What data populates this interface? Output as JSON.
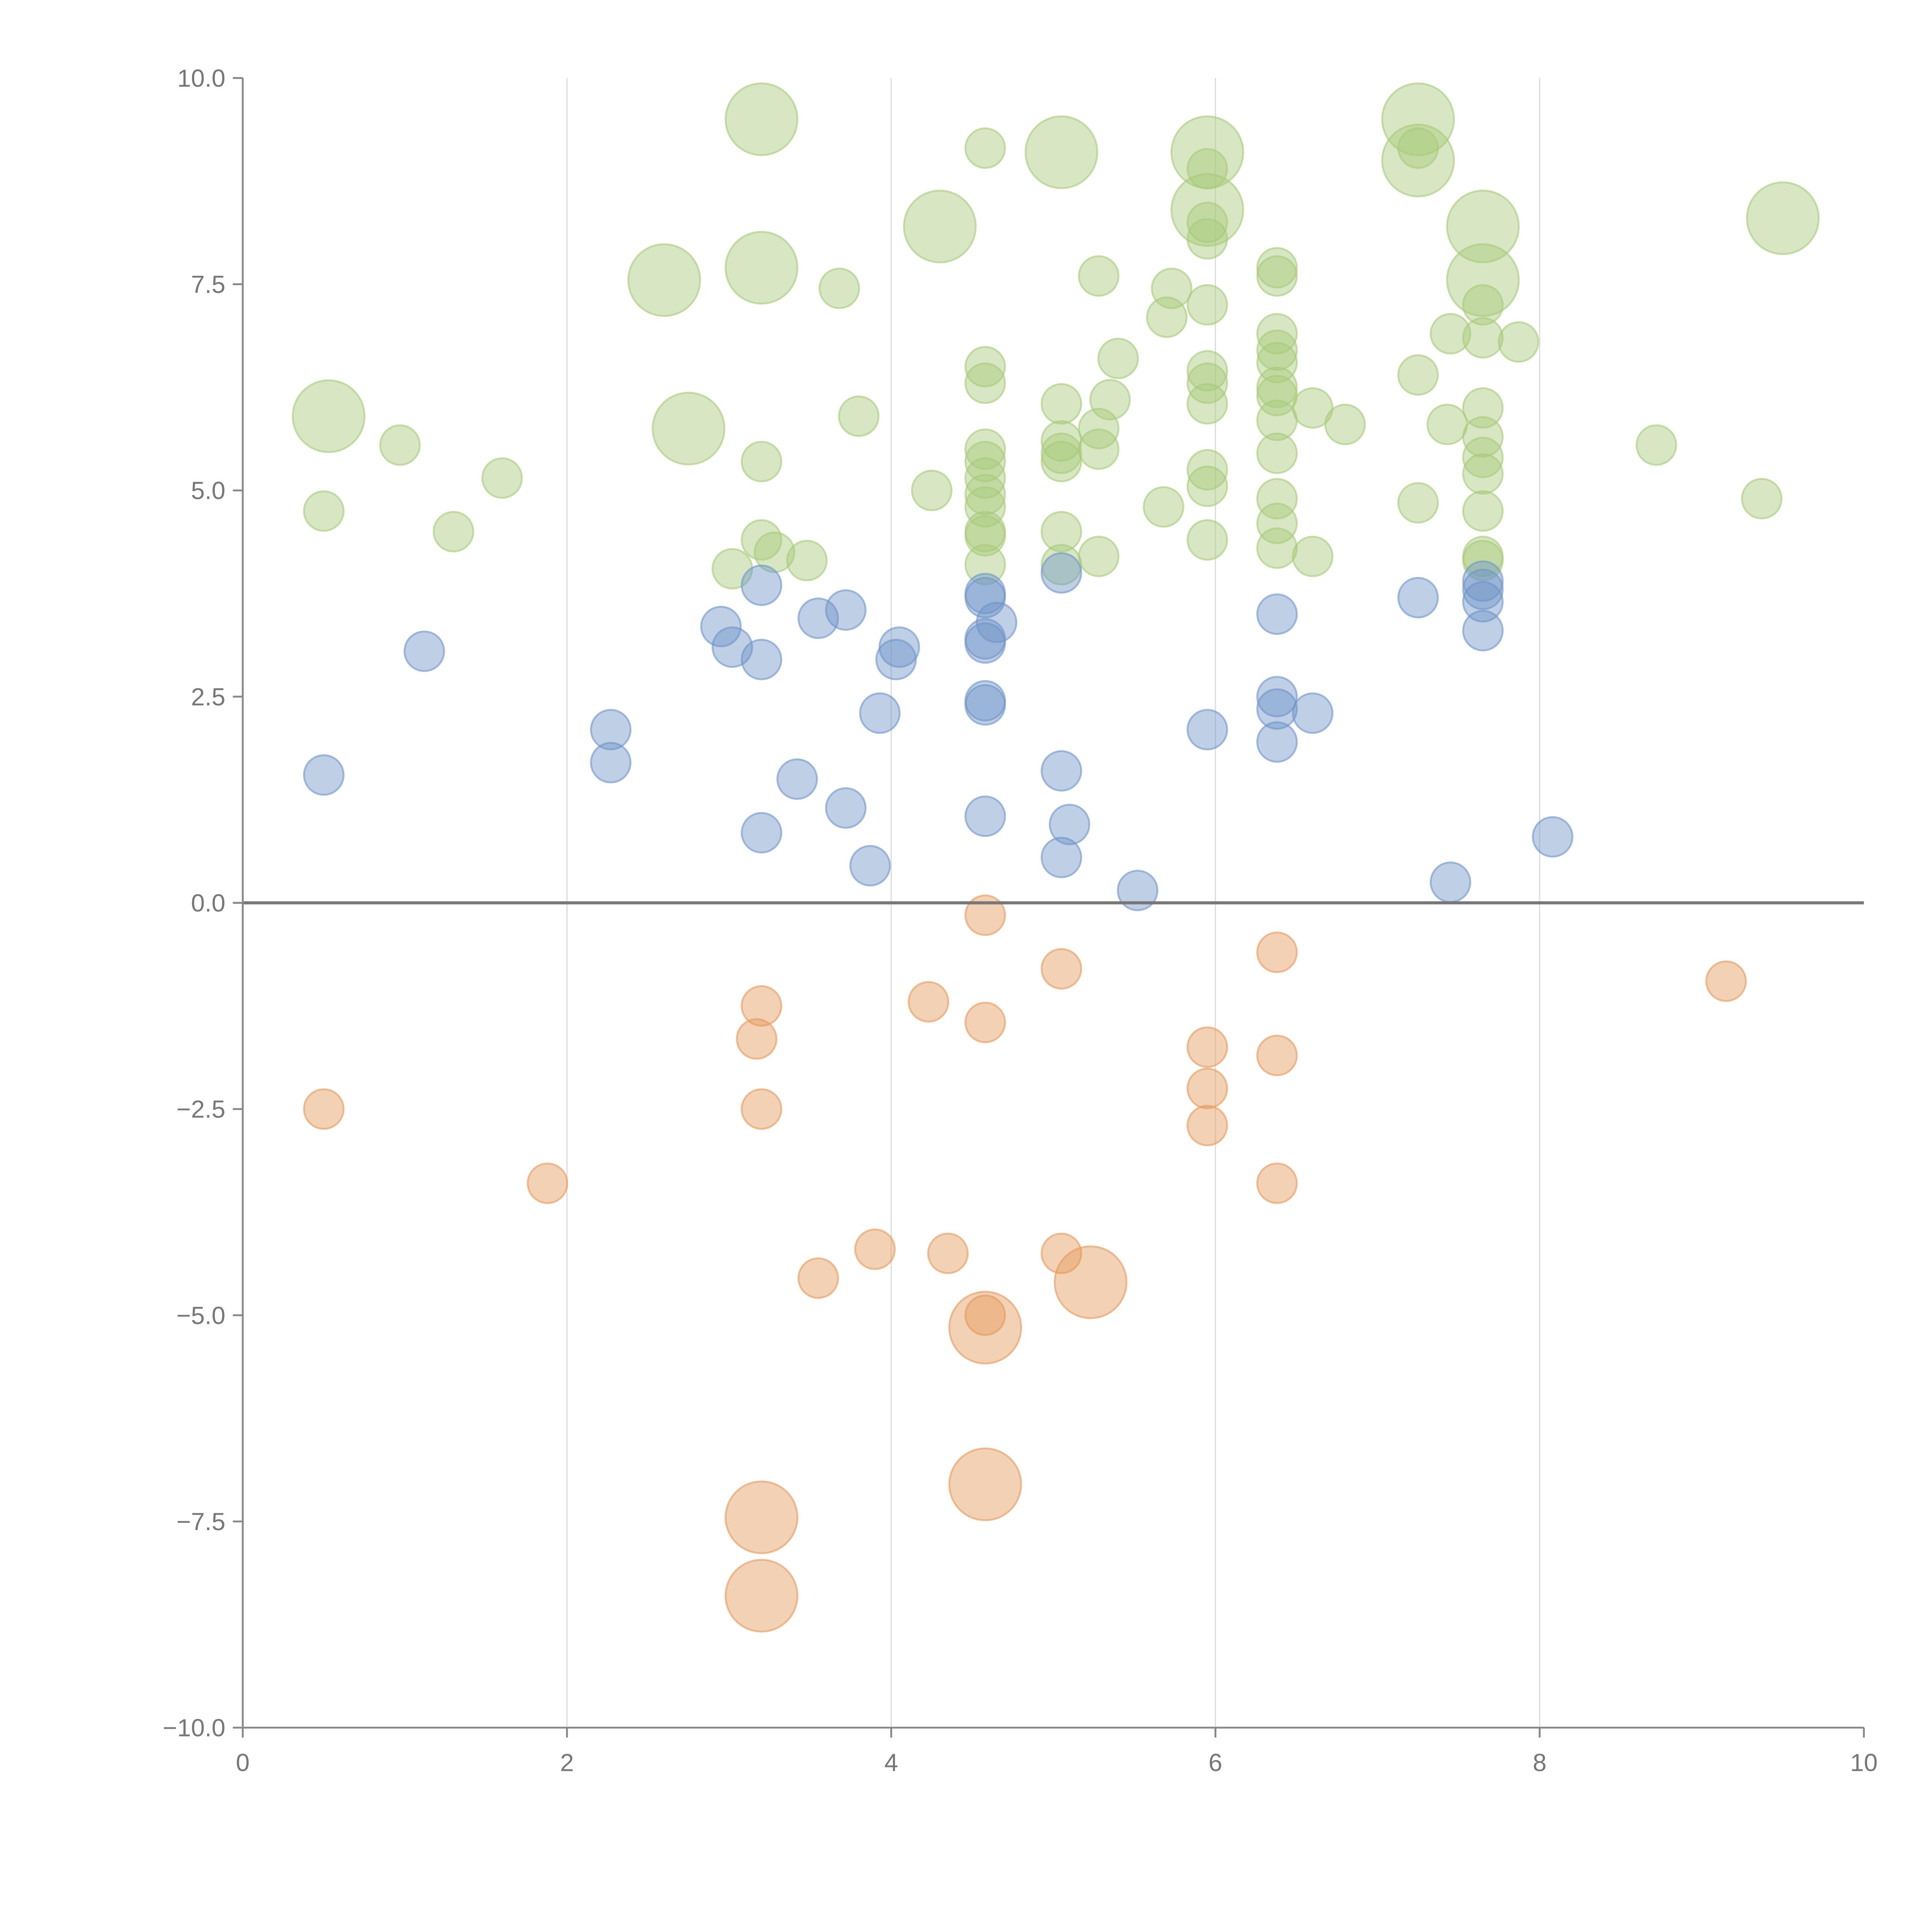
{
  "chart_data": {
    "type": "scatter",
    "title": "",
    "xlabel": "",
    "ylabel": "",
    "xlim": [
      0,
      10
    ],
    "ylim": [
      -10,
      10
    ],
    "x_ticks": [
      "0",
      "2",
      "4",
      "6",
      "8",
      "10"
    ],
    "x_tick_values": [
      0,
      2,
      4,
      6,
      8,
      10
    ],
    "y_ticks": [
      "10.0",
      "7.5",
      "5.0",
      "2.5",
      "0.0",
      "−2.5",
      "−5.0",
      "−7.5",
      "−10.0"
    ],
    "y_tick_values": [
      10,
      7.5,
      5,
      2.5,
      0,
      -2.5,
      -5,
      -7.5,
      -10
    ],
    "grid": "vertical",
    "legend": "none",
    "note": "size: 1 = small bubble, 2 = large bubble",
    "series": [
      {
        "name": "green",
        "color": "#a9c97a",
        "points": [
          [
            0.53,
            5.9,
            2
          ],
          [
            2.6,
            7.55,
            2
          ],
          [
            2.75,
            5.75,
            2
          ],
          [
            3.2,
            9.5,
            2
          ],
          [
            3.2,
            7.7,
            2
          ],
          [
            4.3,
            8.2,
            2
          ],
          [
            5.05,
            9.1,
            2
          ],
          [
            5.95,
            9.1,
            2
          ],
          [
            5.95,
            8.4,
            2
          ],
          [
            7.25,
            9.5,
            2
          ],
          [
            7.25,
            9.0,
            2
          ],
          [
            7.65,
            8.2,
            2
          ],
          [
            7.65,
            7.55,
            2
          ],
          [
            9.5,
            8.3,
            2
          ],
          [
            0.5,
            4.75,
            1
          ],
          [
            0.97,
            5.55,
            1
          ],
          [
            1.3,
            4.5,
            1
          ],
          [
            1.6,
            5.15,
            1
          ],
          [
            3.2,
            5.35,
            1
          ],
          [
            3.2,
            4.4,
            1
          ],
          [
            3.28,
            4.25,
            1
          ],
          [
            3.48,
            4.15,
            1
          ],
          [
            3.02,
            4.05,
            1
          ],
          [
            3.68,
            7.45,
            1
          ],
          [
            3.8,
            5.9,
            1
          ],
          [
            4.25,
            5.0,
            1
          ],
          [
            4.58,
            9.15,
            1
          ],
          [
            4.58,
            6.5,
            1
          ],
          [
            4.58,
            6.3,
            1
          ],
          [
            4.58,
            5.5,
            1
          ],
          [
            4.58,
            5.35,
            1
          ],
          [
            4.58,
            5.15,
            1
          ],
          [
            4.58,
            4.95,
            1
          ],
          [
            4.58,
            4.8,
            1
          ],
          [
            4.58,
            4.5,
            1
          ],
          [
            4.58,
            4.45,
            1
          ],
          [
            4.58,
            4.1,
            1
          ],
          [
            5.05,
            6.05,
            1
          ],
          [
            5.05,
            5.6,
            1
          ],
          [
            5.05,
            5.45,
            1
          ],
          [
            5.05,
            5.35,
            1
          ],
          [
            5.05,
            4.5,
            1
          ],
          [
            5.05,
            4.1,
            1
          ],
          [
            5.28,
            7.6,
            1
          ],
          [
            5.28,
            5.75,
            1
          ],
          [
            5.28,
            5.5,
            1
          ],
          [
            5.28,
            4.2,
            1
          ],
          [
            5.35,
            6.1,
            1
          ],
          [
            5.4,
            6.6,
            1
          ],
          [
            5.68,
            4.8,
            1
          ],
          [
            5.7,
            7.1,
            1
          ],
          [
            5.73,
            7.45,
            1
          ],
          [
            5.95,
            8.9,
            1
          ],
          [
            5.95,
            8.25,
            1
          ],
          [
            5.95,
            8.05,
            1
          ],
          [
            5.95,
            7.25,
            1
          ],
          [
            5.95,
            6.45,
            1
          ],
          [
            5.95,
            6.3,
            1
          ],
          [
            5.95,
            6.05,
            1
          ],
          [
            5.95,
            5.25,
            1
          ],
          [
            5.95,
            5.05,
            1
          ],
          [
            5.95,
            4.4,
            1
          ],
          [
            6.38,
            7.7,
            1
          ],
          [
            6.38,
            7.6,
            1
          ],
          [
            6.38,
            6.9,
            1
          ],
          [
            6.38,
            6.7,
            1
          ],
          [
            6.38,
            6.55,
            1
          ],
          [
            6.38,
            6.25,
            1
          ],
          [
            6.38,
            6.15,
            1
          ],
          [
            6.38,
            5.85,
            1
          ],
          [
            6.38,
            5.45,
            1
          ],
          [
            6.38,
            4.9,
            1
          ],
          [
            6.38,
            4.6,
            1
          ],
          [
            6.38,
            4.3,
            1
          ],
          [
            6.6,
            6.0,
            1
          ],
          [
            6.6,
            4.2,
            1
          ],
          [
            6.8,
            5.8,
            1
          ],
          [
            7.25,
            6.4,
            1
          ],
          [
            7.25,
            4.85,
            1
          ],
          [
            7.25,
            9.15,
            1
          ],
          [
            7.43,
            5.8,
            1
          ],
          [
            7.45,
            6.9,
            1
          ],
          [
            7.65,
            7.25,
            1
          ],
          [
            7.65,
            6.85,
            1
          ],
          [
            7.65,
            6.0,
            1
          ],
          [
            7.65,
            5.65,
            1
          ],
          [
            7.65,
            5.4,
            1
          ],
          [
            7.65,
            5.2,
            1
          ],
          [
            7.65,
            4.75,
            1
          ],
          [
            7.65,
            4.2,
            1
          ],
          [
            7.65,
            4.15,
            1
          ],
          [
            7.87,
            6.8,
            1
          ],
          [
            8.72,
            5.55,
            1
          ],
          [
            9.37,
            4.9,
            1
          ]
        ]
      },
      {
        "name": "blue",
        "color": "#6f94c8",
        "points": [
          [
            0.5,
            1.55,
            1
          ],
          [
            1.12,
            3.05,
            1
          ],
          [
            2.27,
            2.1,
            1
          ],
          [
            2.27,
            1.7,
            1
          ],
          [
            2.95,
            3.35,
            1
          ],
          [
            3.02,
            3.1,
            1
          ],
          [
            3.2,
            3.85,
            1
          ],
          [
            3.2,
            2.95,
            1
          ],
          [
            3.2,
            0.85,
            1
          ],
          [
            3.42,
            1.5,
            1
          ],
          [
            3.55,
            3.45,
            1
          ],
          [
            3.72,
            3.55,
            1
          ],
          [
            3.72,
            1.15,
            1
          ],
          [
            3.87,
            0.45,
            1
          ],
          [
            3.93,
            2.3,
            1
          ],
          [
            4.03,
            2.95,
            1
          ],
          [
            4.05,
            3.1,
            1
          ],
          [
            4.58,
            3.75,
            1
          ],
          [
            4.58,
            3.7,
            1
          ],
          [
            4.58,
            3.2,
            1
          ],
          [
            4.58,
            3.15,
            1
          ],
          [
            4.58,
            2.45,
            1
          ],
          [
            4.58,
            2.4,
            1
          ],
          [
            4.58,
            1.05,
            1
          ],
          [
            4.65,
            3.4,
            1
          ],
          [
            5.05,
            4.0,
            1
          ],
          [
            5.05,
            1.6,
            1
          ],
          [
            5.05,
            0.55,
            1
          ],
          [
            5.1,
            0.95,
            1
          ],
          [
            5.52,
            0.15,
            1
          ],
          [
            5.95,
            2.1,
            1
          ],
          [
            6.38,
            3.5,
            1
          ],
          [
            6.38,
            2.5,
            1
          ],
          [
            6.38,
            2.35,
            1
          ],
          [
            6.38,
            1.95,
            1
          ],
          [
            6.6,
            2.3,
            1
          ],
          [
            7.25,
            3.7,
            1
          ],
          [
            7.45,
            0.25,
            1
          ],
          [
            7.65,
            3.9,
            1
          ],
          [
            7.65,
            3.8,
            1
          ],
          [
            7.65,
            3.65,
            1
          ],
          [
            7.65,
            3.3,
            1
          ],
          [
            8.08,
            0.8,
            1
          ]
        ]
      },
      {
        "name": "orange",
        "color": "#e59a5b",
        "points": [
          [
            0.5,
            -2.5,
            1
          ],
          [
            1.88,
            -3.4,
            1
          ],
          [
            3.2,
            -1.25,
            1
          ],
          [
            3.17,
            -1.65,
            1
          ],
          [
            3.2,
            -2.5,
            1
          ],
          [
            3.55,
            -4.55,
            1
          ],
          [
            3.9,
            -4.2,
            1
          ],
          [
            4.23,
            -1.2,
            1
          ],
          [
            4.35,
            -4.25,
            1
          ],
          [
            4.58,
            -0.15,
            1
          ],
          [
            4.58,
            -1.45,
            1
          ],
          [
            4.58,
            -5.0,
            1
          ],
          [
            5.05,
            -0.8,
            1
          ],
          [
            5.05,
            -4.25,
            1
          ],
          [
            5.95,
            -1.75,
            1
          ],
          [
            5.95,
            -2.25,
            1
          ],
          [
            5.95,
            -2.7,
            1
          ],
          [
            6.38,
            -0.6,
            1
          ],
          [
            6.38,
            -1.85,
            1
          ],
          [
            6.38,
            -3.4,
            1
          ],
          [
            9.15,
            -0.95,
            1
          ],
          [
            3.2,
            -7.45,
            2
          ],
          [
            3.2,
            -8.4,
            2
          ],
          [
            4.58,
            -5.15,
            2
          ],
          [
            4.58,
            -7.05,
            2
          ],
          [
            5.23,
            -4.6,
            2
          ]
        ]
      }
    ]
  }
}
